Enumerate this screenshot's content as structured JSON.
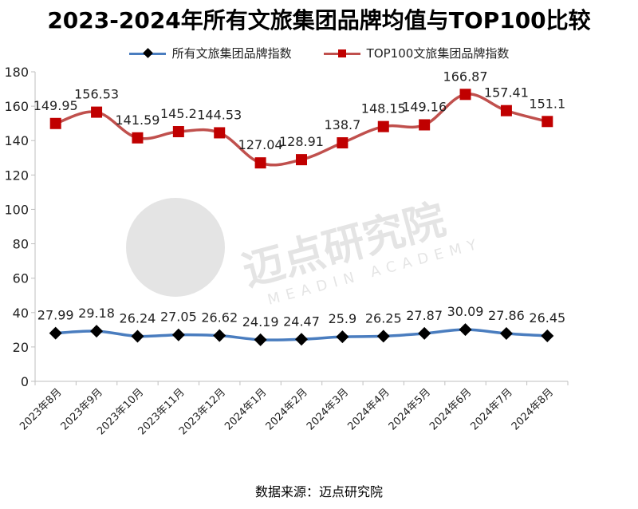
{
  "title": "2023-2024年所有文旅集团品牌均值与TOP100比较",
  "source": "数据来源：迈点研究院",
  "watermark": {
    "cn": "迈点研究院",
    "en": "MEADIN ACADEMY"
  },
  "colors": {
    "series1": "#4a7dbf",
    "series1_marker": "#000000",
    "series2_line": "#c0504d",
    "series2_marker": "#c00000",
    "grid": "#d9d9d9",
    "axis": "#bfbfbf"
  },
  "chart_data": {
    "type": "line",
    "title": "2023-2024年所有文旅集团品牌均值与TOP100比较",
    "xlabel": "",
    "ylabel": "",
    "ylim": [
      0,
      180
    ],
    "yticks": [
      0,
      20,
      40,
      60,
      80,
      100,
      120,
      140,
      160,
      180
    ],
    "grid": false,
    "legend_position": "top",
    "categories": [
      "2023年8月",
      "2023年9月",
      "2023年10月",
      "2023年11月",
      "2023年12月",
      "2024年1月",
      "2024年2月",
      "2024年3月",
      "2024年4月",
      "2024年5月",
      "2024年6月",
      "2024年7月",
      "2024年8月"
    ],
    "series": [
      {
        "name": "所有文旅集团品牌指数",
        "marker": "diamond",
        "values": [
          27.99,
          29.18,
          26.24,
          27.05,
          26.62,
          24.19,
          24.47,
          25.9,
          26.25,
          27.87,
          30.09,
          27.86,
          26.45
        ],
        "labels": [
          "27.99",
          "29.18",
          "26.24",
          "27.05",
          "26.62",
          "24.19",
          "24.47",
          "25.9",
          "26.25",
          "27.87",
          "30.09",
          "27.86",
          "26.45"
        ]
      },
      {
        "name": "TOP100文旅集团品牌指数",
        "marker": "square",
        "values": [
          149.95,
          156.53,
          141.59,
          145.2,
          144.53,
          127.04,
          128.91,
          138.7,
          148.15,
          149.16,
          166.87,
          157.41,
          151.1
        ],
        "labels": [
          "149.95",
          "156.53",
          "141.59",
          "145.2",
          "144.53",
          "127.04",
          "128.91",
          "138.7",
          "148.15",
          "149.16",
          "166.87",
          "157.41",
          "151.1"
        ]
      }
    ]
  }
}
